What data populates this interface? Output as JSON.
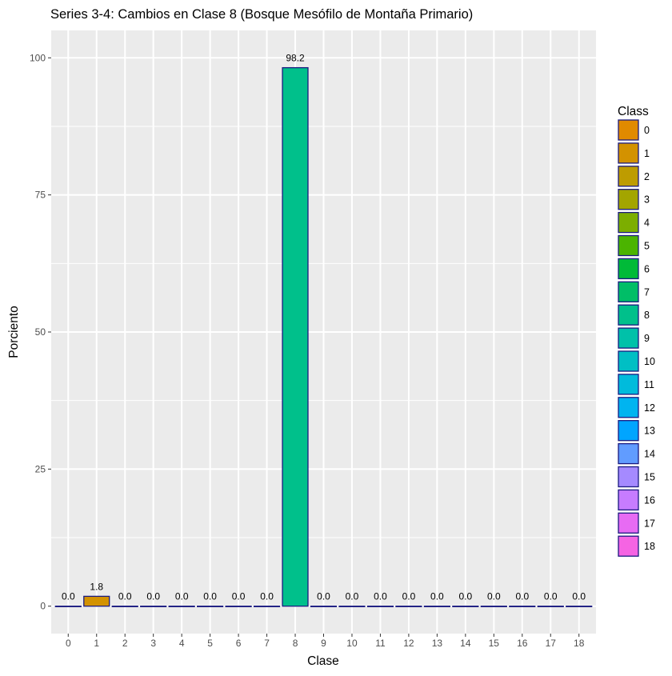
{
  "chart_data": {
    "type": "bar",
    "title": "Series 3-4: Cambios en Clase 8 (Bosque Mesófilo de Montaña Primario)",
    "xlabel": "Clase",
    "ylabel": "Porciento",
    "ylim": [
      -5,
      105
    ],
    "yticks": [
      0,
      25,
      50,
      75,
      100
    ],
    "grid": true,
    "legend_position": "right",
    "legend_title": "Class",
    "bar_outline_color": "#1a1a80",
    "panel_background": "#ebebeb",
    "grid_color": "#ffffff",
    "categories": [
      "0",
      "1",
      "2",
      "3",
      "4",
      "5",
      "6",
      "7",
      "8",
      "9",
      "10",
      "11",
      "12",
      "13",
      "14",
      "15",
      "16",
      "17",
      "18"
    ],
    "values": [
      0.0,
      1.8,
      0.0,
      0.0,
      0.0,
      0.0,
      0.0,
      0.0,
      98.2,
      0.0,
      0.0,
      0.0,
      0.0,
      0.0,
      0.0,
      0.0,
      0.0,
      0.0,
      0.0
    ],
    "data_labels": [
      "0.0",
      "1.8",
      "0.0",
      "0.0",
      "0.0",
      "0.0",
      "0.0",
      "0.0",
      "98.2",
      "0.0",
      "0.0",
      "0.0",
      "0.0",
      "0.0",
      "0.0",
      "0.0",
      "0.0",
      "0.0",
      "0.0"
    ],
    "colors": [
      "#E18A00",
      "#D39200",
      "#BE9C00",
      "#A3A500",
      "#7CAE00",
      "#4BB400",
      "#00BA38",
      "#00BE67",
      "#00C08B",
      "#00C1A9",
      "#00BFC4",
      "#00BBDC",
      "#00B4F0",
      "#00A5FF",
      "#619CFF",
      "#A58AFF",
      "#C77CFF",
      "#E76BF3",
      "#F564E3"
    ]
  }
}
